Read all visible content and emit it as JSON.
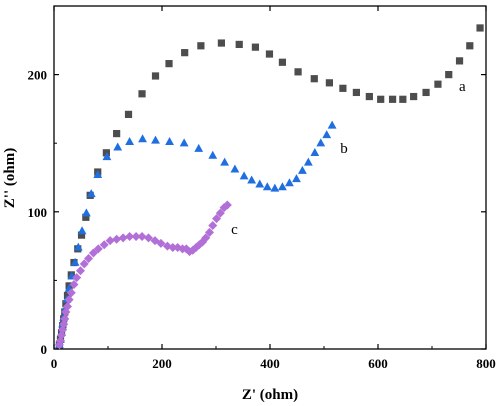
{
  "chart_data": {
    "type": "scatter",
    "title": "",
    "xlabel": "Z' (ohm)",
    "ylabel": "Z'' (ohm)",
    "xlim": [
      0,
      800
    ],
    "ylim": [
      0,
      250
    ],
    "x_ticks": [
      0,
      200,
      400,
      600,
      800
    ],
    "y_ticks": [
      0,
      100,
      200
    ],
    "x_tick_labels": [
      "0",
      "200",
      "400",
      "600",
      "800"
    ],
    "y_tick_labels": [
      "0",
      "100",
      "200"
    ],
    "grid": false,
    "series": [
      {
        "name": "a",
        "marker": "square",
        "color": "#4d4d4d",
        "label_at": [
          750,
          188
        ],
        "points": [
          [
            10,
            3
          ],
          [
            12,
            7
          ],
          [
            14,
            12
          ],
          [
            16,
            17
          ],
          [
            18,
            22
          ],
          [
            20,
            27
          ],
          [
            22,
            33
          ],
          [
            25,
            39
          ],
          [
            28,
            46
          ],
          [
            32,
            54
          ],
          [
            37,
            63
          ],
          [
            44,
            73
          ],
          [
            51,
            83
          ],
          [
            59,
            96
          ],
          [
            67,
            112
          ],
          [
            81,
            129
          ],
          [
            97,
            143
          ],
          [
            116,
            157
          ],
          [
            138,
            171
          ],
          [
            163,
            186
          ],
          [
            188,
            199
          ],
          [
            213,
            208
          ],
          [
            242,
            216
          ],
          [
            272,
            221
          ],
          [
            310,
            223
          ],
          [
            343,
            222
          ],
          [
            373,
            220
          ],
          [
            399,
            215
          ],
          [
            423,
            209
          ],
          [
            452,
            202
          ],
          [
            482,
            197
          ],
          [
            510,
            194
          ],
          [
            535,
            190
          ],
          [
            560,
            187
          ],
          [
            584,
            184
          ],
          [
            605,
            182
          ],
          [
            627,
            182
          ],
          [
            646,
            182
          ],
          [
            666,
            184
          ],
          [
            689,
            187
          ],
          [
            711,
            193
          ],
          [
            731,
            200
          ],
          [
            751,
            210
          ],
          [
            770,
            221
          ],
          [
            789,
            234
          ]
        ]
      },
      {
        "name": "b",
        "marker": "triangle",
        "color": "#1f6fe0",
        "label_at": [
          530,
          143
        ],
        "points": [
          [
            10,
            3
          ],
          [
            12,
            7
          ],
          [
            14,
            12
          ],
          [
            16,
            18
          ],
          [
            18,
            23
          ],
          [
            21,
            29
          ],
          [
            24,
            36
          ],
          [
            28,
            44
          ],
          [
            33,
            53
          ],
          [
            39,
            63
          ],
          [
            45,
            74
          ],
          [
            52,
            86
          ],
          [
            60,
            99
          ],
          [
            69,
            113
          ],
          [
            81,
            127
          ],
          [
            98,
            140
          ],
          [
            118,
            147
          ],
          [
            140,
            151
          ],
          [
            164,
            153
          ],
          [
            188,
            152
          ],
          [
            214,
            151
          ],
          [
            241,
            150
          ],
          [
            268,
            146
          ],
          [
            294,
            141
          ],
          [
            316,
            136
          ],
          [
            335,
            131
          ],
          [
            352,
            126
          ],
          [
            366,
            123
          ],
          [
            381,
            120
          ],
          [
            395,
            118
          ],
          [
            409,
            117
          ],
          [
            423,
            118
          ],
          [
            436,
            121
          ],
          [
            449,
            124
          ],
          [
            460,
            130
          ],
          [
            471,
            136
          ],
          [
            483,
            143
          ],
          [
            494,
            150
          ],
          [
            505,
            156
          ],
          [
            515,
            163
          ]
        ]
      },
      {
        "name": "c",
        "marker": "diamond",
        "color": "#b26fd8",
        "label_at": [
          328,
          84
        ],
        "points": [
          [
            10,
            3
          ],
          [
            12,
            6
          ],
          [
            14,
            10
          ],
          [
            16,
            14
          ],
          [
            18,
            18
          ],
          [
            20,
            22
          ],
          [
            22,
            27
          ],
          [
            25,
            31
          ],
          [
            28,
            36
          ],
          [
            32,
            41
          ],
          [
            37,
            47
          ],
          [
            42,
            52
          ],
          [
            49,
            57
          ],
          [
            56,
            62
          ],
          [
            64,
            66
          ],
          [
            73,
            70
          ],
          [
            82,
            73
          ],
          [
            93,
            76
          ],
          [
            104,
            79
          ],
          [
            116,
            80
          ],
          [
            128,
            81
          ],
          [
            140,
            82
          ],
          [
            152,
            82
          ],
          [
            163,
            82
          ],
          [
            175,
            81
          ],
          [
            187,
            79
          ],
          [
            198,
            77
          ],
          [
            210,
            75
          ],
          [
            220,
            74
          ],
          [
            229,
            74
          ],
          [
            238,
            73
          ],
          [
            245,
            73
          ],
          [
            251,
            71
          ],
          [
            257,
            72
          ],
          [
            263,
            74
          ],
          [
            269,
            76
          ],
          [
            275,
            78
          ],
          [
            281,
            81
          ],
          [
            288,
            85
          ],
          [
            294,
            90
          ],
          [
            301,
            95
          ],
          [
            308,
            99
          ],
          [
            315,
            103
          ],
          [
            321,
            105
          ]
        ]
      }
    ]
  }
}
